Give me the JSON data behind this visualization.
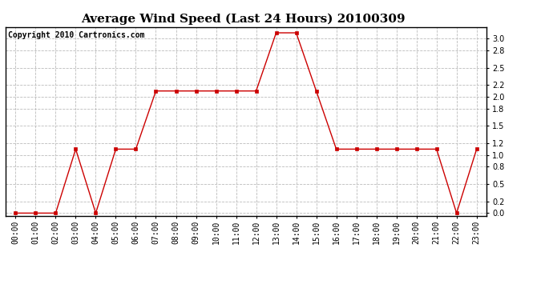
{
  "title": "Average Wind Speed (Last 24 Hours) 20100309",
  "copyright": "Copyright 2010 Cartronics.com",
  "x_labels": [
    "00:00",
    "01:00",
    "02:00",
    "03:00",
    "04:00",
    "05:00",
    "06:00",
    "07:00",
    "08:00",
    "09:00",
    "10:00",
    "11:00",
    "12:00",
    "13:00",
    "14:00",
    "15:00",
    "16:00",
    "17:00",
    "18:00",
    "19:00",
    "20:00",
    "21:00",
    "22:00",
    "23:00"
  ],
  "y_values": [
    0.0,
    0.0,
    0.0,
    1.1,
    0.0,
    1.1,
    1.1,
    2.1,
    2.1,
    2.1,
    2.1,
    2.1,
    2.1,
    3.1,
    3.1,
    2.1,
    1.1,
    1.1,
    1.1,
    1.1,
    1.1,
    1.1,
    0.0,
    1.1
  ],
  "line_color": "#cc0000",
  "marker": "s",
  "marker_size": 2.5,
  "marker_color": "#cc0000",
  "bg_color": "#ffffff",
  "grid_color": "#bbbbbb",
  "ylim": [
    -0.05,
    3.2
  ],
  "yticks": [
    0.0,
    0.2,
    0.5,
    0.8,
    1.0,
    1.2,
    1.5,
    1.8,
    2.0,
    2.2,
    2.5,
    2.8,
    3.0
  ],
  "title_fontsize": 11,
  "copyright_fontsize": 7,
  "tick_fontsize": 7
}
